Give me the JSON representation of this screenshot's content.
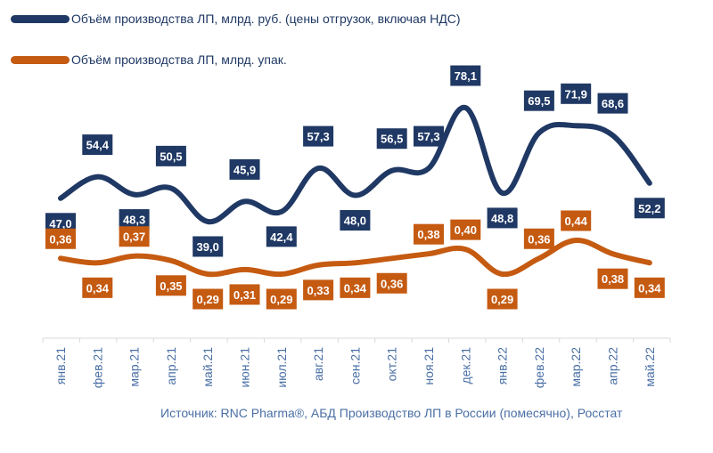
{
  "colors": {
    "series1": "#1f3864",
    "series2": "#c55a11",
    "tick_text": "#4a6fa5",
    "label_text": "#ffffff",
    "source_text": "#4a6fa5",
    "axis": "#d9d9d9"
  },
  "chart_data": {
    "type": "line",
    "categories": [
      "янв.21",
      "фев.21",
      "мар.21",
      "апр.21",
      "май.21",
      "июн.21",
      "июл.21",
      "авг.21",
      "сен.21",
      "окт.21",
      "ноя.21",
      "дек.21",
      "янв.22",
      "фев.22",
      "мар.22",
      "апр.22",
      "май.22"
    ],
    "series": [
      {
        "name": "Объём производства ЛП, млрд. руб. (цены отгрузок, включая НДС)",
        "values": [
          47.0,
          54.4,
          48.3,
          50.5,
          39.0,
          45.9,
          42.4,
          57.3,
          48.0,
          56.5,
          57.3,
          78.1,
          48.8,
          69.5,
          71.9,
          68.6,
          52.2
        ],
        "labels": [
          "47,0",
          "54,4",
          "48,3",
          "50,5",
          "39,0",
          "45,9",
          "42,4",
          "57,3",
          "48,0",
          "56,5",
          "57,3",
          "78,1",
          "48,8",
          "69,5",
          "71,9",
          "68,6",
          "52,2"
        ]
      },
      {
        "name": "Объём производства ЛП, млрд. упак.",
        "values": [
          0.36,
          0.34,
          0.37,
          0.35,
          0.29,
          0.31,
          0.29,
          0.33,
          0.34,
          0.36,
          0.38,
          0.4,
          0.29,
          0.36,
          0.44,
          0.38,
          0.34
        ],
        "labels": [
          "0,36",
          "0,34",
          "0,37",
          "0,35",
          "0,29",
          "0,31",
          "0,29",
          "0,33",
          "0,34",
          "0,36",
          "0,38",
          "0,40",
          "0,29",
          "0,36",
          "0,44",
          "0,38",
          "0,34"
        ]
      }
    ],
    "legend_position": "top-left",
    "grid": false
  },
  "source": "Источник: RNC Pharma®, АБД Производство ЛП в России (помесячно), Росстат"
}
